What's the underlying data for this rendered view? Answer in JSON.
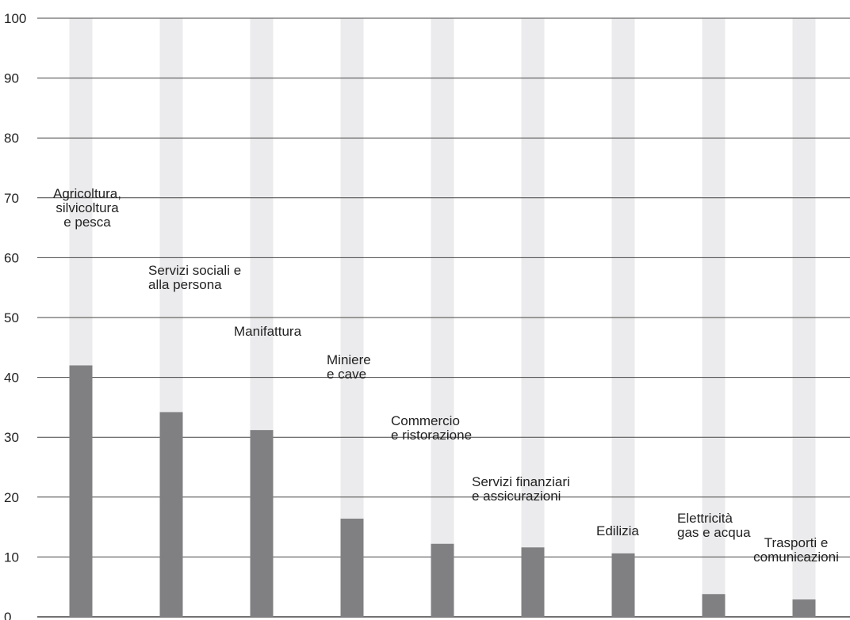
{
  "chart_data": {
    "type": "bar",
    "title": "",
    "xlabel": "",
    "ylabel": "",
    "ylim": [
      0,
      100
    ],
    "yticks": [
      0,
      10,
      20,
      30,
      40,
      50,
      60,
      70,
      80,
      90,
      100
    ],
    "grid": true,
    "categories": [
      [
        "Agricoltura,",
        "silvicoltura",
        "e pesca"
      ],
      [
        "Servizi sociali e",
        "alla persona"
      ],
      [
        "Manifattura"
      ],
      [
        "Miniere",
        "e cave"
      ],
      [
        "Commercio",
        "e ristorazione"
      ],
      [
        "Servizi finanziari",
        "e assicurazioni"
      ],
      [
        "Edilizia"
      ],
      [
        "Elettricità",
        "gas e acqua"
      ],
      [
        "Trasporti e",
        "comunicazioni"
      ]
    ],
    "values": [
      42,
      34.2,
      31.2,
      16.4,
      12.2,
      11.6,
      10.6,
      3.8,
      2.9
    ],
    "max_value": 100,
    "colors": {
      "bar": "#808083",
      "bar_background": "#ebebed",
      "grid": "#444444",
      "text": "#222222"
    }
  }
}
